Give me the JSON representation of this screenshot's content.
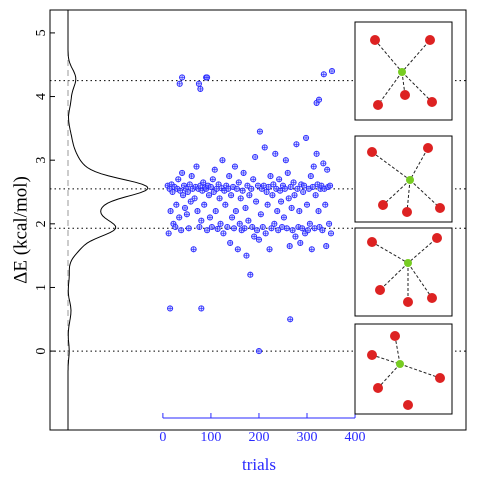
{
  "chart_data": {
    "type": "scatter",
    "ylabel": "ΔE (kcal/mol)",
    "xlabel": "trials",
    "xlim": [
      -235,
      631
    ],
    "ylim": [
      -1.24,
      5.36
    ],
    "xticks": [
      0,
      100,
      200,
      300,
      400
    ],
    "yticks": [
      0,
      1,
      2,
      3,
      4,
      5
    ],
    "hlines": [
      4.25,
      2.55,
      1.93,
      0
    ],
    "color": "#2a2aff",
    "x": [
      15,
      80,
      200,
      265,
      40,
      35,
      75,
      78,
      90,
      92,
      335,
      352,
      320,
      325,
      10,
      12,
      14,
      16,
      18,
      20,
      22,
      24,
      26,
      28,
      30,
      32,
      34,
      36,
      38,
      40,
      42,
      44,
      46,
      48,
      50,
      52,
      54,
      56,
      58,
      60,
      62,
      64,
      66,
      68,
      70,
      72,
      74,
      76,
      78,
      80,
      82,
      84,
      86,
      88,
      90,
      92,
      94,
      96,
      98,
      100,
      102,
      104,
      106,
      108,
      110,
      112,
      114,
      116,
      118,
      120,
      122,
      124,
      126,
      128,
      130,
      132,
      134,
      136,
      138,
      140,
      142,
      144,
      146,
      148,
      150,
      152,
      154,
      156,
      158,
      160,
      162,
      164,
      166,
      168,
      170,
      172,
      174,
      176,
      178,
      180,
      182,
      184,
      186,
      188,
      190,
      192,
      194,
      196,
      198,
      200,
      202,
      204,
      206,
      208,
      210,
      212,
      214,
      216,
      218,
      220,
      222,
      224,
      226,
      228,
      230,
      232,
      234,
      236,
      238,
      240,
      242,
      244,
      246,
      248,
      250,
      252,
      254,
      256,
      258,
      260,
      262,
      264,
      266,
      268,
      270,
      272,
      274,
      276,
      278,
      280,
      282,
      284,
      286,
      288,
      290,
      292,
      294,
      296,
      298,
      300,
      302,
      304,
      306,
      308,
      310,
      312,
      314,
      316,
      318,
      320,
      322,
      324,
      326,
      328,
      330,
      332,
      334,
      336,
      338,
      340,
      342,
      344,
      346,
      348,
      350
    ],
    "values": [
      0.67,
      0.67,
      0.0,
      0.5,
      4.3,
      4.2,
      4.2,
      4.12,
      4.3,
      4.3,
      4.35,
      4.4,
      3.9,
      3.95,
      2.6,
      1.85,
      2.55,
      2.2,
      2.62,
      2.5,
      2.0,
      2.58,
      1.95,
      2.3,
      2.55,
      2.7,
      2.1,
      2.52,
      1.9,
      2.8,
      2.45,
      2.6,
      2.25,
      2.55,
      2.15,
      2.5,
      1.93,
      2.62,
      2.35,
      2.75,
      2.55,
      1.6,
      2.4,
      2.58,
      2.9,
      2.2,
      2.55,
      1.95,
      2.6,
      2.05,
      2.52,
      2.65,
      2.3,
      2.57,
      2.55,
      1.9,
      2.6,
      2.45,
      2.1,
      2.58,
      1.95,
      2.7,
      2.5,
      2.85,
      2.2,
      2.55,
      1.92,
      2.62,
      2.4,
      2.0,
      2.56,
      3.0,
      1.85,
      2.52,
      2.3,
      2.6,
      1.95,
      2.55,
      2.75,
      1.7,
      2.45,
      2.1,
      2.58,
      1.93,
      2.9,
      2.2,
      2.55,
      1.6,
      2.65,
      2.0,
      2.4,
      1.9,
      2.52,
      2.8,
      1.93,
      2.25,
      1.5,
      2.6,
      2.05,
      2.45,
      1.2,
      2.55,
      1.95,
      2.7,
      1.8,
      3.05,
      2.35,
      1.9,
      2.6,
      1.75,
      3.45,
      2.15,
      2.55,
      1.95,
      2.6,
      3.2,
      1.85,
      2.5,
      2.3,
      2.58,
      1.6,
      2.75,
      1.93,
      2.45,
      2.62,
      2.0,
      3.1,
      2.55,
      2.2,
      1.9,
      2.7,
      2.52,
      2.35,
      1.95,
      2.6,
      2.1,
      2.55,
      3.0,
      1.93,
      2.8,
      2.4,
      1.65,
      2.58,
      2.25,
      1.9,
      2.65,
      2.45,
      1.8,
      3.25,
      2.55,
      1.95,
      2.2,
      1.7,
      2.62,
      1.93,
      2.5,
      2.6,
      1.85,
      3.35,
      2.3,
      1.9,
      2.55,
      2.0,
      2.75,
      1.6,
      2.58,
      2.9,
      1.93,
      2.45,
      3.1,
      2.62,
      2.2,
      1.95,
      2.55,
      2.6,
      1.9,
      2.95,
      2.55,
      2.3,
      1.65,
      2.85,
      2.58,
      2.0,
      2.6,
      1.85
    ]
  }
}
